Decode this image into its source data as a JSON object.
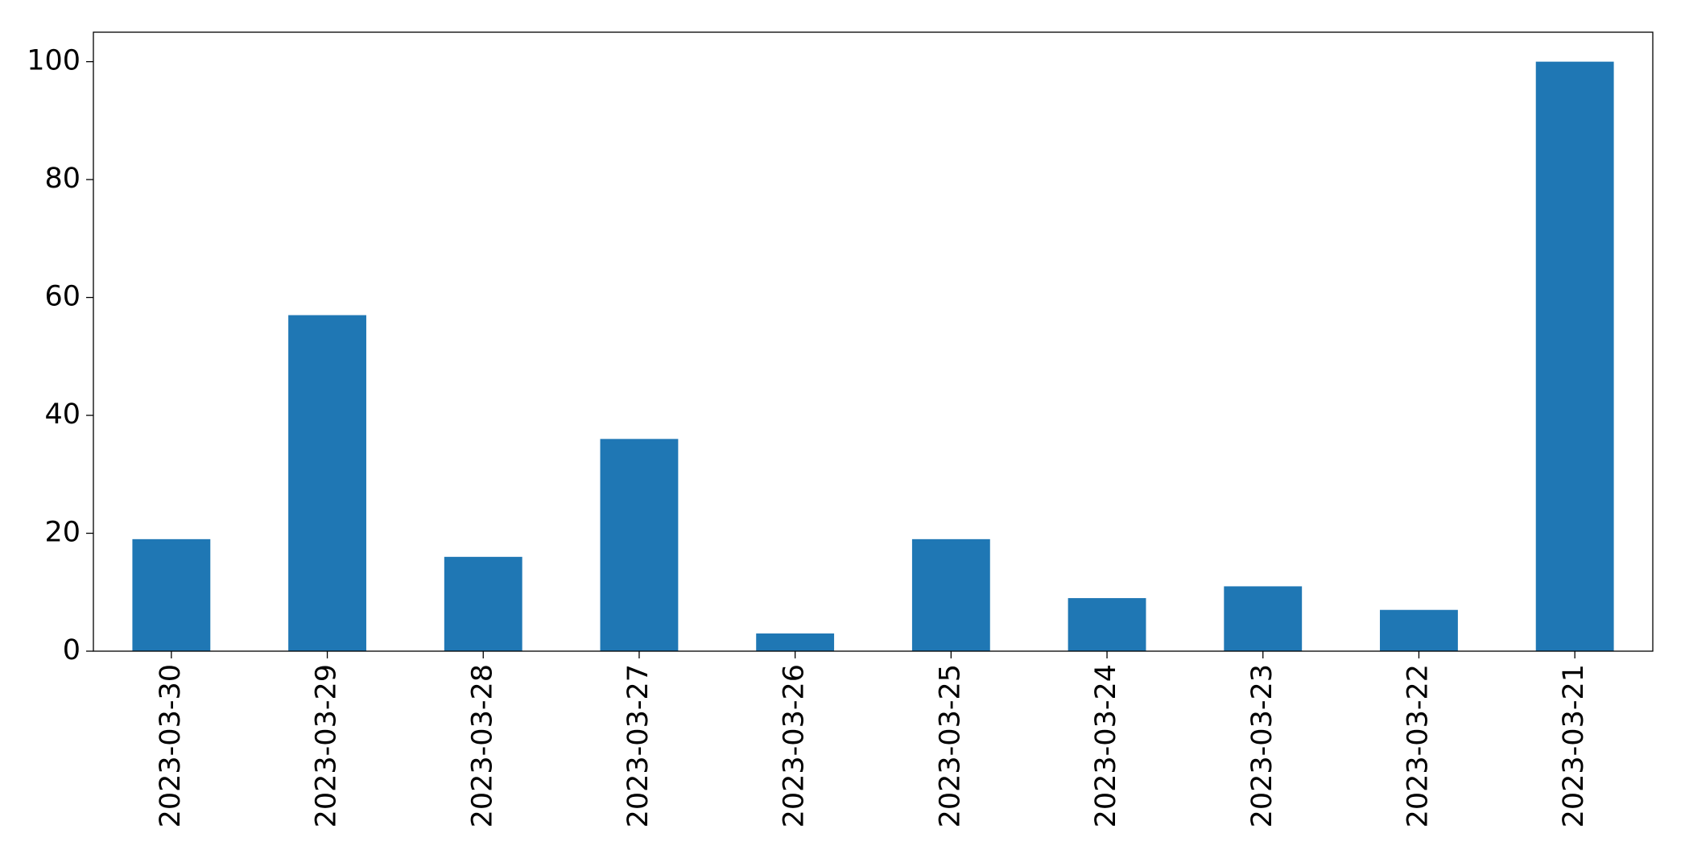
{
  "chart_data": {
    "type": "bar",
    "categories": [
      "2023-03-30",
      "2023-03-29",
      "2023-03-28",
      "2023-03-27",
      "2023-03-26",
      "2023-03-25",
      "2023-03-24",
      "2023-03-23",
      "2023-03-22",
      "2023-03-21"
    ],
    "values": [
      19,
      57,
      16,
      36,
      3,
      19,
      9,
      11,
      7,
      100
    ],
    "color": "#1f77b4",
    "ylim": [
      0,
      105
    ],
    "yticks": [
      0,
      20,
      40,
      60,
      80,
      100
    ],
    "grid": false
  }
}
